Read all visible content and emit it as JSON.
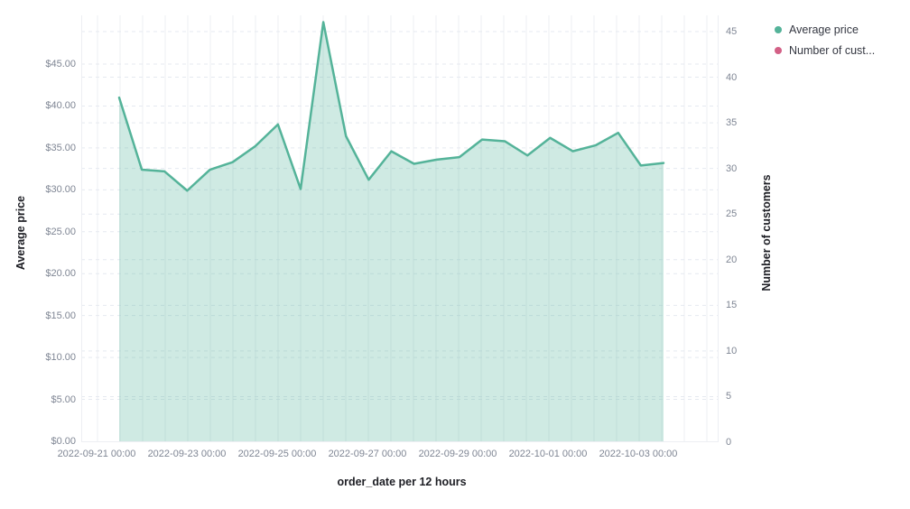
{
  "chart_data": {
    "type": "area",
    "title": "",
    "grid": true,
    "legend_position": "top-right",
    "x_axis": {
      "title": "order_date per 12 hours",
      "tick_labels": [
        "2022-09-21 00:00",
        "2022-09-23 00:00",
        "2022-09-25 00:00",
        "2022-09-27 00:00",
        "2022-09-29 00:00",
        "2022-10-01 00:00",
        "2022-10-03 00:00"
      ]
    },
    "left_axis": {
      "title": "Average price",
      "min": 0,
      "max": 45,
      "step": 5,
      "tick_labels": [
        "$0.00",
        "$5.00",
        "$10.00",
        "$15.00",
        "$20.00",
        "$25.00",
        "$30.00",
        "$35.00",
        "$40.00",
        "$45.00"
      ]
    },
    "right_axis": {
      "title": "Number of customers",
      "min": 0,
      "max": 45,
      "step": 5,
      "tick_labels": [
        "0",
        "5",
        "10",
        "15",
        "20",
        "25",
        "30",
        "35",
        "40",
        "45"
      ]
    },
    "x": [
      "2022-09-21 12:00",
      "2022-09-22 00:00",
      "2022-09-22 12:00",
      "2022-09-23 00:00",
      "2022-09-23 12:00",
      "2022-09-24 00:00",
      "2022-09-24 12:00",
      "2022-09-25 00:00",
      "2022-09-25 12:00",
      "2022-09-26 00:00",
      "2022-09-26 12:00",
      "2022-09-27 00:00",
      "2022-09-27 12:00",
      "2022-09-28 00:00",
      "2022-09-28 12:00",
      "2022-09-29 00:00",
      "2022-09-29 12:00",
      "2022-09-30 00:00",
      "2022-09-30 12:00",
      "2022-10-01 00:00",
      "2022-10-01 12:00",
      "2022-10-02 00:00",
      "2022-10-02 12:00",
      "2022-10-03 00:00",
      "2022-10-03 12:00"
    ],
    "series": [
      {
        "name": "Average price",
        "type": "area",
        "axis": "left",
        "color": "#54B399",
        "values": [
          41.0,
          32.4,
          32.2,
          29.9,
          32.4,
          33.3,
          35.2,
          37.8,
          30.1,
          50.0,
          36.4,
          31.2,
          34.6,
          33.1,
          33.6,
          33.9,
          36.0,
          35.8,
          34.1,
          36.2,
          34.6,
          35.3,
          36.8,
          32.9,
          33.2
        ]
      },
      {
        "name": "Number of customers",
        "type": "line",
        "axis": "right",
        "color": "#D36086",
        "values": []
      }
    ]
  },
  "legend": {
    "items": [
      {
        "label": "Average price",
        "color": "#54B399"
      },
      {
        "label": "Number of cust...",
        "color": "#D36086"
      }
    ]
  },
  "colors": {
    "series_green": "#54B399",
    "series_pink": "#D36086",
    "area_fill_opacity": 0.28,
    "grid_dashed": "#e5e9f0",
    "grid_solid": "#edeff3",
    "tick_text": "#7f8694",
    "title_text": "#1d1e24",
    "background": "#ffffff"
  }
}
